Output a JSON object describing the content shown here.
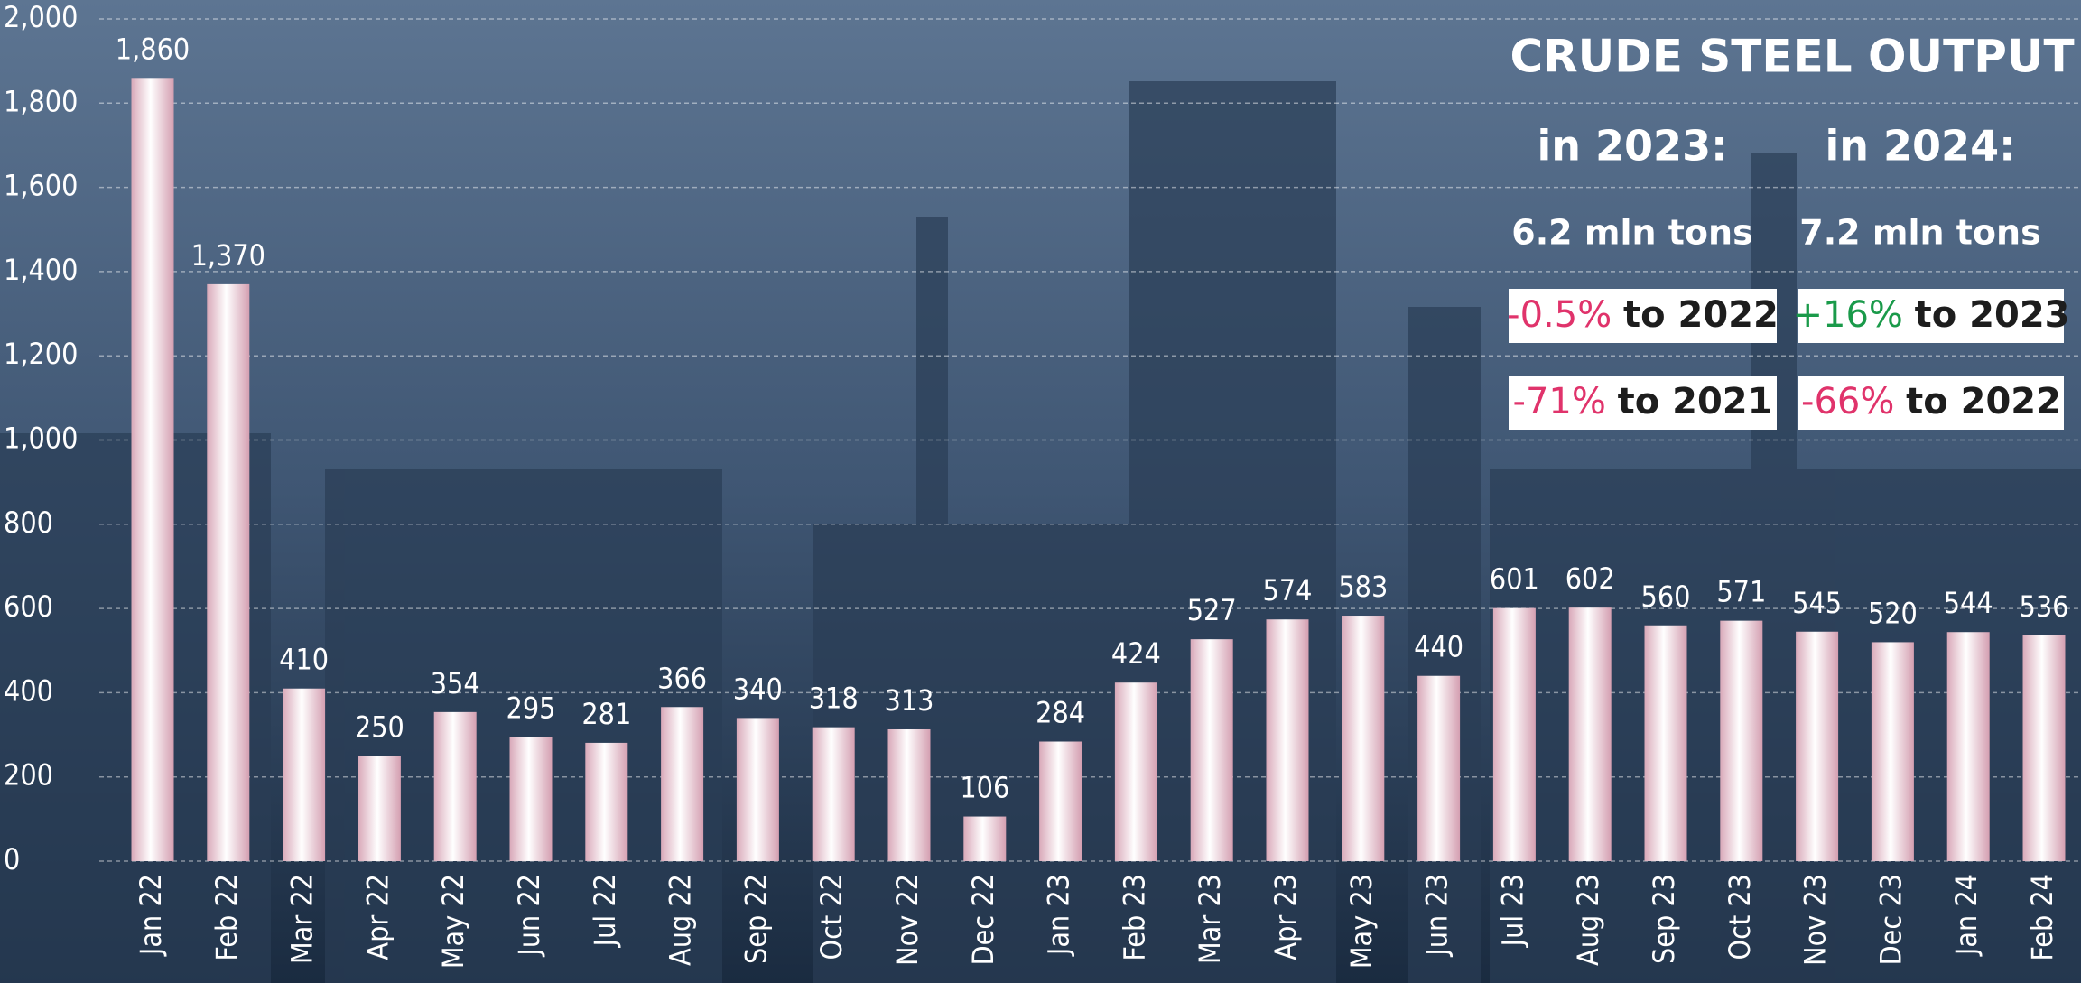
{
  "chart_data": {
    "type": "bar",
    "title": "CRUDE STEEL OUTPUT",
    "years": [
      "in 2023:",
      "in 2024:"
    ],
    "totals": [
      "6.2 mln tons",
      "7.2 mln tons"
    ],
    "comparisons": [
      [
        {
          "change": "-0.5%",
          "text": "to 2022",
          "color": "#e0336b"
        },
        {
          "change": "+16%",
          "text": "to 2023",
          "color": "#1a9a4a"
        }
      ],
      [
        {
          "change": "-71%",
          "text": "to 2021",
          "color": "#e0336b"
        },
        {
          "change": "-66%",
          "text": "to 2022",
          "color": "#e0336b"
        }
      ]
    ],
    "categories": [
      "Jan 22",
      "Feb 22",
      "Mar 22",
      "Apr 22",
      "May 22",
      "Jun 22",
      "Jul 22",
      "Aug 22",
      "Sep 22",
      "Oct 22",
      "Nov 22",
      "Dec 22",
      "Jan 23",
      "Feb 23",
      "Mar 23",
      "Apr 23",
      "May 23",
      "Jun 23",
      "Jul 23",
      "Aug 23",
      "Sep 23",
      "Oct 23",
      "Nov 23",
      "Dec 23",
      "Jan 24",
      "Feb 24"
    ],
    "values": [
      1860,
      1370,
      410,
      250,
      354,
      295,
      281,
      366,
      340,
      318,
      313,
      106,
      284,
      424,
      527,
      574,
      583,
      440,
      601,
      602,
      560,
      571,
      545,
      520,
      544,
      536
    ],
    "value_labels": [
      "1,860",
      "1,370",
      "410",
      "250",
      "354",
      "295",
      "281",
      "366",
      "340",
      "318",
      "313",
      "106",
      "284",
      "424",
      "527",
      "574",
      "583",
      "440",
      "601",
      "602",
      "560",
      "571",
      "545",
      "520",
      "544",
      "536"
    ],
    "color": "#f3dbe3",
    "ylim": [
      0,
      2000
    ],
    "yticks": [
      0,
      200,
      400,
      600,
      800,
      {
        "value": 1000,
        "label": "1,000"
      },
      {
        "value": 1200,
        "label": "1,200"
      },
      {
        "value": 1400,
        "label": "1,400"
      },
      {
        "value": 1600,
        "label": "1,600"
      },
      {
        "value": 1800,
        "label": "1,800"
      },
      {
        "value": 2000,
        "label": "2,000"
      }
    ],
    "grid": true
  }
}
